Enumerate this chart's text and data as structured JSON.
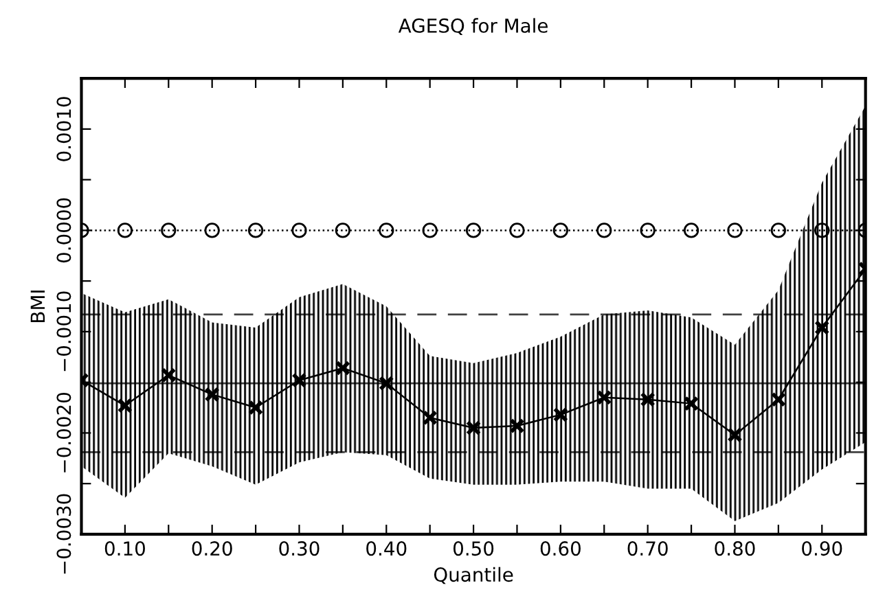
{
  "chart_data": {
    "type": "line",
    "title": "AGESQ for Male",
    "xlabel": "Quantile",
    "ylabel": "BMI",
    "x": [
      0.05,
      0.1,
      0.15,
      0.2,
      0.25,
      0.3,
      0.35,
      0.4,
      0.45,
      0.5,
      0.55,
      0.6,
      0.65,
      0.7,
      0.75,
      0.8,
      0.85,
      0.9,
      0.95
    ],
    "series": [
      {
        "color": "#000000",
        "marker": "cross",
        "line_style": "solid",
        "values": [
          -0.00148,
          -0.00173,
          -0.00143,
          -0.00162,
          -0.00175,
          -0.00148,
          -0.00136,
          -0.00151,
          -0.00185,
          -0.00195,
          -0.00193,
          -0.00182,
          -0.00165,
          -0.00167,
          -0.00171,
          -0.00202,
          -0.00167,
          -0.00096,
          -0.00038
        ],
        "upper": [
          -0.00062,
          -0.00081,
          -0.00068,
          -0.00091,
          -0.00096,
          -0.00066,
          -0.00053,
          -0.00075,
          -0.00124,
          -0.00131,
          -0.00121,
          -0.00105,
          -0.00083,
          -0.00079,
          -0.00086,
          -0.00113,
          -0.00059,
          0.00047,
          0.00123
        ],
        "lower": [
          -0.00233,
          -0.00264,
          -0.0022,
          -0.00233,
          -0.00251,
          -0.00229,
          -0.00219,
          -0.00222,
          -0.00245,
          -0.00251,
          -0.00251,
          -0.00248,
          -0.00248,
          -0.00255,
          -0.00255,
          -0.00287,
          -0.00269,
          -0.00236,
          -0.00209
        ]
      },
      {
        "color": "#000000",
        "marker": "circle",
        "line_style": "dotted",
        "values": [
          0,
          0,
          0,
          0,
          0,
          0,
          0,
          0,
          0,
          0,
          0,
          0,
          0,
          0,
          0,
          0,
          0,
          0,
          0
        ]
      }
    ],
    "ref_lines": [
      {
        "axis": "y",
        "value": -0.00151,
        "color": "#000000",
        "line_style": "solid"
      },
      {
        "axis": "y",
        "value": -0.00083,
        "color": "#000000",
        "line_style": "dashed"
      },
      {
        "axis": "y",
        "value": -0.00219,
        "color": "#000000",
        "line_style": "dashed"
      }
    ],
    "xlim": [
      0.05,
      0.95
    ],
    "xticks": [
      {
        "value": 0.05,
        "label": null
      },
      {
        "value": 0.1,
        "label": "0.10"
      },
      {
        "value": 0.15,
        "label": null
      },
      {
        "value": 0.2,
        "label": "0.20"
      },
      {
        "value": 0.25,
        "label": null
      },
      {
        "value": 0.3,
        "label": "0.30"
      },
      {
        "value": 0.35,
        "label": null
      },
      {
        "value": 0.4,
        "label": "0.40"
      },
      {
        "value": 0.45,
        "label": null
      },
      {
        "value": 0.5,
        "label": "0.50"
      },
      {
        "value": 0.55,
        "label": null
      },
      {
        "value": 0.6,
        "label": "0.60"
      },
      {
        "value": 0.65,
        "label": null
      },
      {
        "value": 0.7,
        "label": "0.70"
      },
      {
        "value": 0.75,
        "label": null
      },
      {
        "value": 0.8,
        "label": "0.80"
      },
      {
        "value": 0.85,
        "label": null
      },
      {
        "value": 0.9,
        "label": "0.90"
      },
      {
        "value": 0.95,
        "label": null
      }
    ],
    "ylim": [
      -0.003,
      0.0015
    ],
    "yticks": [
      {
        "value": -0.003,
        "label": "−0.0030"
      },
      {
        "value": -0.0025,
        "label": null
      },
      {
        "value": -0.002,
        "label": "−0.0020"
      },
      {
        "value": -0.0015,
        "label": null
      },
      {
        "value": -0.001,
        "label": "−0.0010"
      },
      {
        "value": -0.0005,
        "label": null
      },
      {
        "value": 0.0,
        "label": "0.0000"
      },
      {
        "value": 0.0005,
        "label": null
      },
      {
        "value": 0.001,
        "label": "0.0010"
      },
      {
        "value": 0.0015,
        "label": null
      }
    ],
    "grid": false,
    "legend": false
  }
}
